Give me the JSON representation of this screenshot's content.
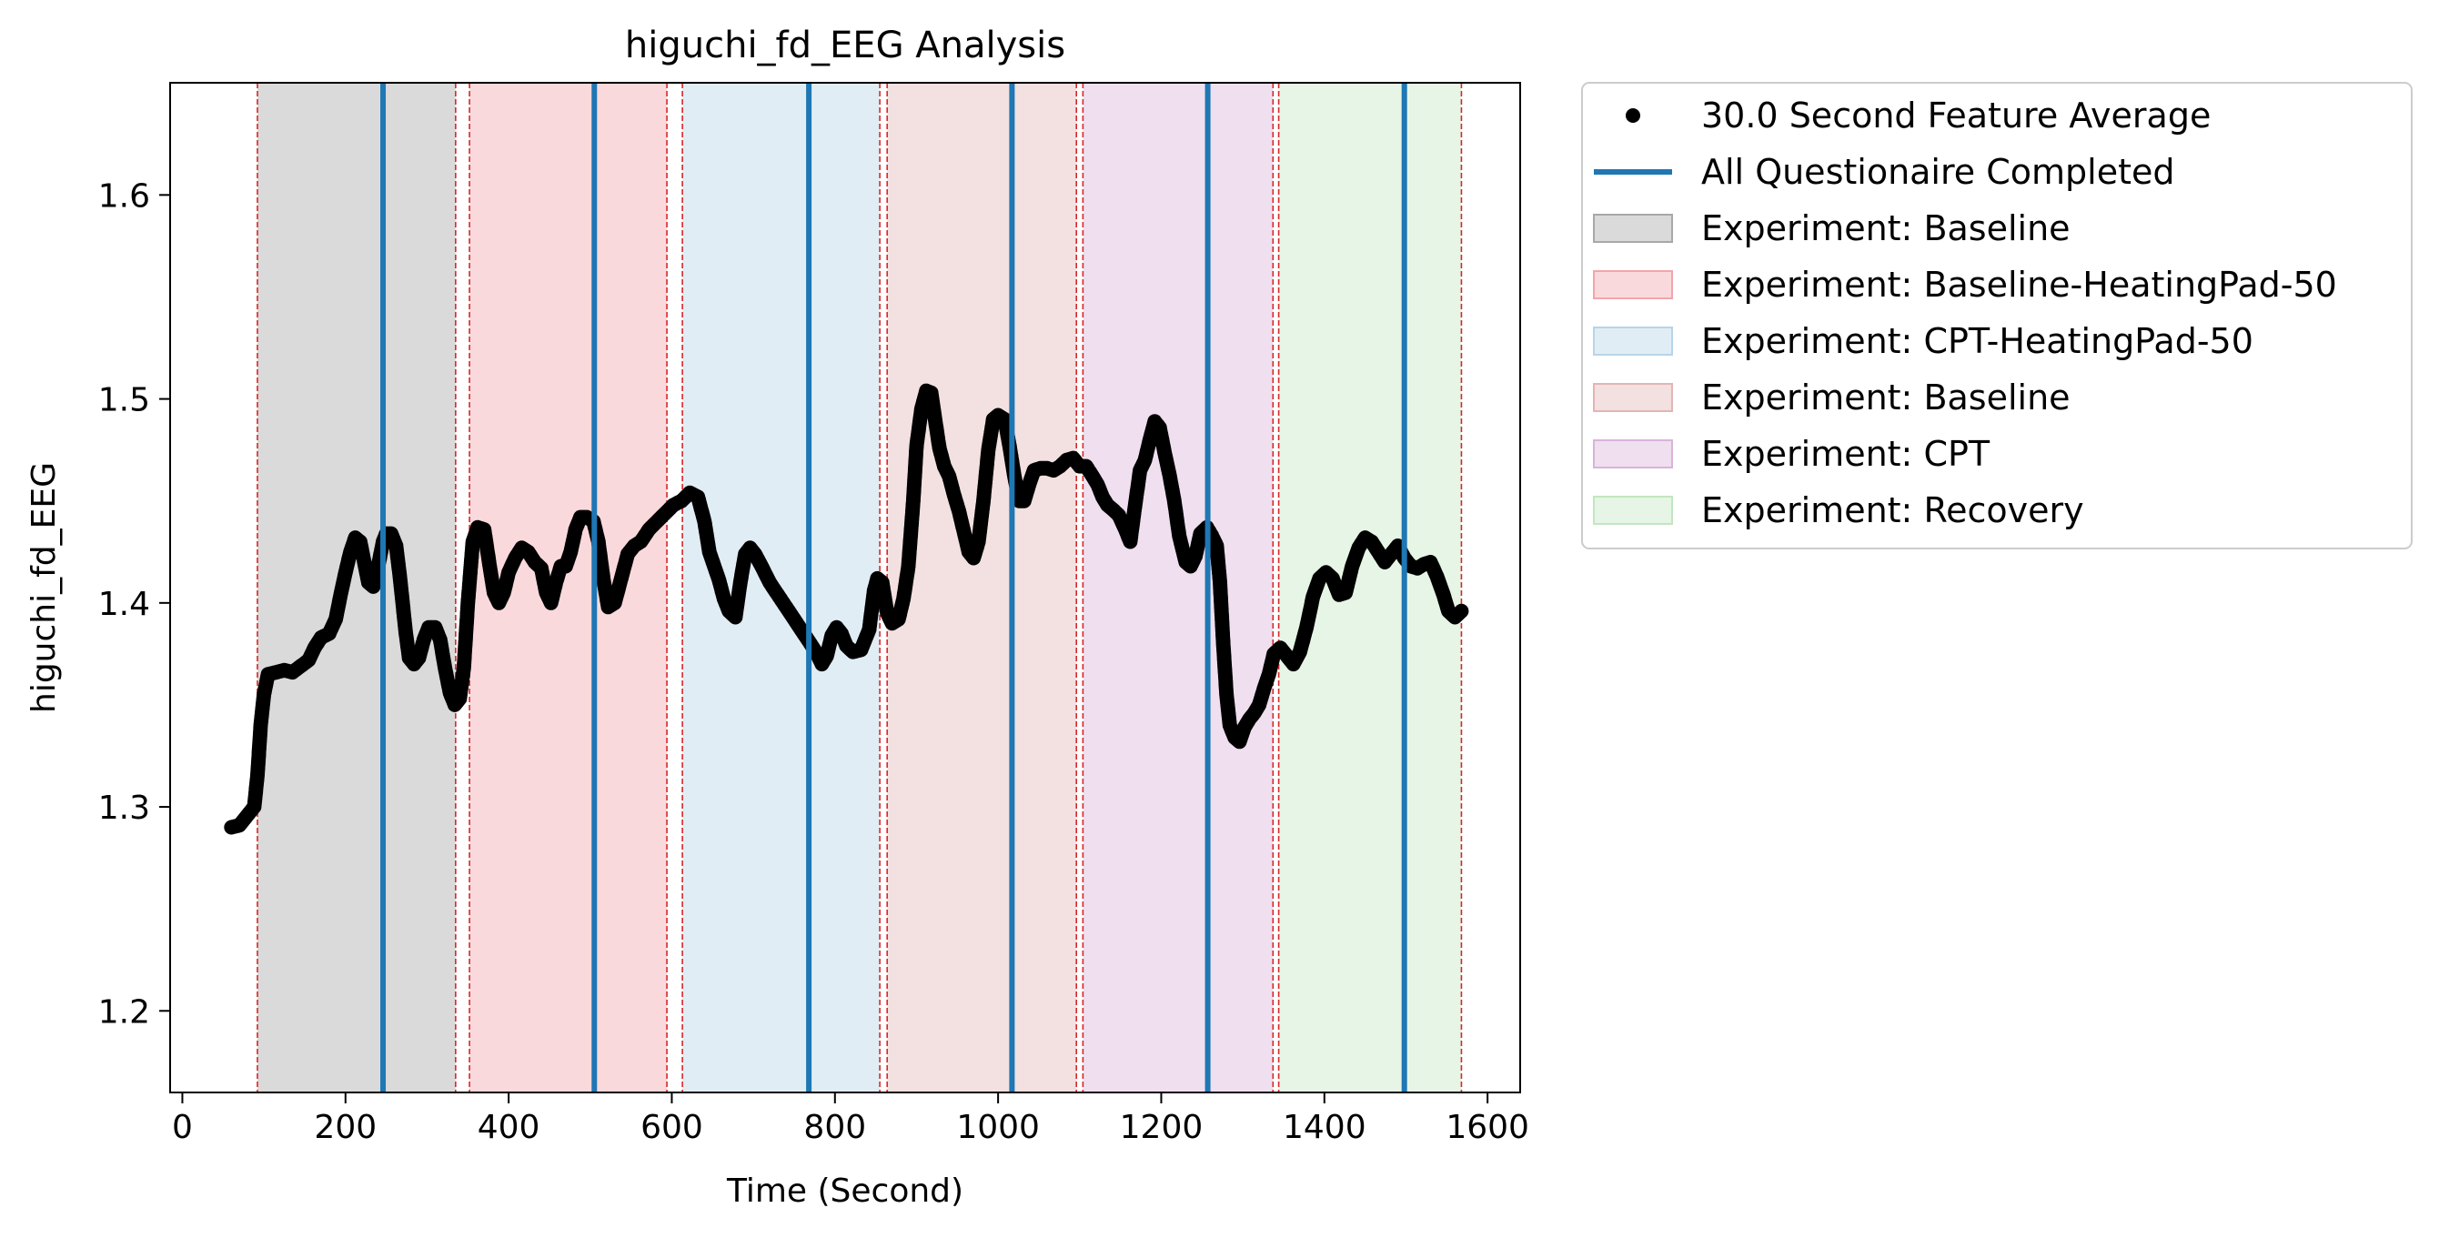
{
  "chart_data": {
    "type": "scatter",
    "title": "higuchi_fd_EEG Analysis",
    "xlabel": "Time (Second)",
    "ylabel": "higuchi_fd_EEG",
    "xlim": [
      -15,
      1640
    ],
    "ylim": [
      1.16,
      1.655
    ],
    "xticks": [
      0,
      200,
      400,
      600,
      800,
      1000,
      1200,
      1400,
      1600
    ],
    "yticks": [
      1.2,
      1.3,
      1.4,
      1.5,
      1.6
    ],
    "grid": false,
    "legend_position": "outside-right-top",
    "series": [
      {
        "name": "30.0 Second Feature Average",
        "kind": "scatter",
        "color": "#000000",
        "points": [
          [
            60,
            1.29
          ],
          [
            70,
            1.291
          ],
          [
            80,
            1.296
          ],
          [
            88,
            1.3
          ],
          [
            92,
            1.315
          ],
          [
            96,
            1.34
          ],
          [
            100,
            1.355
          ],
          [
            105,
            1.365
          ],
          [
            115,
            1.366
          ],
          [
            125,
            1.367
          ],
          [
            135,
            1.366
          ],
          [
            145,
            1.369
          ],
          [
            155,
            1.372
          ],
          [
            162,
            1.378
          ],
          [
            170,
            1.383
          ],
          [
            180,
            1.385
          ],
          [
            188,
            1.392
          ],
          [
            194,
            1.404
          ],
          [
            200,
            1.415
          ],
          [
            206,
            1.425
          ],
          [
            212,
            1.432
          ],
          [
            218,
            1.43
          ],
          [
            222,
            1.422
          ],
          [
            228,
            1.41
          ],
          [
            234,
            1.408
          ],
          [
            240,
            1.418
          ],
          [
            246,
            1.43
          ],
          [
            250,
            1.434
          ],
          [
            256,
            1.434
          ],
          [
            262,
            1.428
          ],
          [
            266,
            1.415
          ],
          [
            270,
            1.4
          ],
          [
            274,
            1.385
          ],
          [
            278,
            1.373
          ],
          [
            284,
            1.37
          ],
          [
            290,
            1.373
          ],
          [
            296,
            1.382
          ],
          [
            302,
            1.388
          ],
          [
            310,
            1.388
          ],
          [
            316,
            1.382
          ],
          [
            322,
            1.368
          ],
          [
            328,
            1.356
          ],
          [
            334,
            1.35
          ],
          [
            340,
            1.353
          ],
          [
            345,
            1.368
          ],
          [
            350,
            1.4
          ],
          [
            356,
            1.43
          ],
          [
            362,
            1.437
          ],
          [
            370,
            1.436
          ],
          [
            376,
            1.42
          ],
          [
            382,
            1.405
          ],
          [
            388,
            1.4
          ],
          [
            394,
            1.405
          ],
          [
            400,
            1.415
          ],
          [
            408,
            1.422
          ],
          [
            416,
            1.427
          ],
          [
            424,
            1.425
          ],
          [
            432,
            1.42
          ],
          [
            440,
            1.417
          ],
          [
            446,
            1.405
          ],
          [
            452,
            1.4
          ],
          [
            458,
            1.41
          ],
          [
            464,
            1.418
          ],
          [
            470,
            1.418
          ],
          [
            476,
            1.425
          ],
          [
            482,
            1.436
          ],
          [
            488,
            1.442
          ],
          [
            496,
            1.442
          ],
          [
            504,
            1.44
          ],
          [
            510,
            1.43
          ],
          [
            516,
            1.412
          ],
          [
            522,
            1.398
          ],
          [
            530,
            1.4
          ],
          [
            538,
            1.412
          ],
          [
            546,
            1.424
          ],
          [
            554,
            1.428
          ],
          [
            562,
            1.43
          ],
          [
            572,
            1.436
          ],
          [
            582,
            1.44
          ],
          [
            592,
            1.444
          ],
          [
            602,
            1.448
          ],
          [
            612,
            1.45
          ],
          [
            622,
            1.454
          ],
          [
            632,
            1.452
          ],
          [
            640,
            1.44
          ],
          [
            646,
            1.425
          ],
          [
            652,
            1.418
          ],
          [
            658,
            1.411
          ],
          [
            664,
            1.402
          ],
          [
            670,
            1.396
          ],
          [
            678,
            1.393
          ],
          [
            684,
            1.41
          ],
          [
            690,
            1.424
          ],
          [
            696,
            1.427
          ],
          [
            702,
            1.424
          ],
          [
            710,
            1.418
          ],
          [
            720,
            1.41
          ],
          [
            730,
            1.404
          ],
          [
            740,
            1.398
          ],
          [
            750,
            1.392
          ],
          [
            760,
            1.386
          ],
          [
            770,
            1.38
          ],
          [
            778,
            1.375
          ],
          [
            784,
            1.37
          ],
          [
            790,
            1.374
          ],
          [
            796,
            1.384
          ],
          [
            802,
            1.388
          ],
          [
            808,
            1.385
          ],
          [
            814,
            1.379
          ],
          [
            822,
            1.376
          ],
          [
            832,
            1.377
          ],
          [
            842,
            1.387
          ],
          [
            848,
            1.406
          ],
          [
            852,
            1.412
          ],
          [
            858,
            1.41
          ],
          [
            864,
            1.395
          ],
          [
            870,
            1.39
          ],
          [
            878,
            1.392
          ],
          [
            884,
            1.402
          ],
          [
            890,
            1.418
          ],
          [
            896,
            1.45
          ],
          [
            900,
            1.477
          ],
          [
            906,
            1.495
          ],
          [
            912,
            1.504
          ],
          [
            918,
            1.503
          ],
          [
            922,
            1.492
          ],
          [
            928,
            1.476
          ],
          [
            934,
            1.467
          ],
          [
            940,
            1.462
          ],
          [
            946,
            1.453
          ],
          [
            952,
            1.445
          ],
          [
            958,
            1.435
          ],
          [
            964,
            1.425
          ],
          [
            970,
            1.422
          ],
          [
            976,
            1.43
          ],
          [
            982,
            1.45
          ],
          [
            988,
            1.475
          ],
          [
            994,
            1.49
          ],
          [
            1000,
            1.492
          ],
          [
            1008,
            1.49
          ],
          [
            1014,
            1.477
          ],
          [
            1020,
            1.462
          ],
          [
            1026,
            1.45
          ],
          [
            1032,
            1.45
          ],
          [
            1038,
            1.458
          ],
          [
            1044,
            1.465
          ],
          [
            1052,
            1.466
          ],
          [
            1060,
            1.466
          ],
          [
            1068,
            1.465
          ],
          [
            1076,
            1.467
          ],
          [
            1084,
            1.47
          ],
          [
            1092,
            1.471
          ],
          [
            1100,
            1.467
          ],
          [
            1108,
            1.467
          ],
          [
            1116,
            1.462
          ],
          [
            1122,
            1.458
          ],
          [
            1128,
            1.452
          ],
          [
            1134,
            1.448
          ],
          [
            1140,
            1.446
          ],
          [
            1148,
            1.443
          ],
          [
            1156,
            1.436
          ],
          [
            1162,
            1.43
          ],
          [
            1168,
            1.448
          ],
          [
            1174,
            1.465
          ],
          [
            1180,
            1.47
          ],
          [
            1186,
            1.48
          ],
          [
            1192,
            1.489
          ],
          [
            1198,
            1.486
          ],
          [
            1204,
            1.474
          ],
          [
            1210,
            1.463
          ],
          [
            1216,
            1.45
          ],
          [
            1222,
            1.433
          ],
          [
            1230,
            1.42
          ],
          [
            1236,
            1.418
          ],
          [
            1242,
            1.423
          ],
          [
            1248,
            1.434
          ],
          [
            1256,
            1.437
          ],
          [
            1262,
            1.433
          ],
          [
            1268,
            1.428
          ],
          [
            1272,
            1.41
          ],
          [
            1276,
            1.38
          ],
          [
            1280,
            1.355
          ],
          [
            1284,
            1.34
          ],
          [
            1290,
            1.334
          ],
          [
            1296,
            1.332
          ],
          [
            1302,
            1.339
          ],
          [
            1308,
            1.343
          ],
          [
            1314,
            1.346
          ],
          [
            1320,
            1.35
          ],
          [
            1326,
            1.358
          ],
          [
            1332,
            1.365
          ],
          [
            1338,
            1.375
          ],
          [
            1346,
            1.378
          ],
          [
            1354,
            1.374
          ],
          [
            1362,
            1.37
          ],
          [
            1370,
            1.376
          ],
          [
            1378,
            1.388
          ],
          [
            1386,
            1.403
          ],
          [
            1394,
            1.412
          ],
          [
            1402,
            1.415
          ],
          [
            1410,
            1.412
          ],
          [
            1418,
            1.404
          ],
          [
            1426,
            1.405
          ],
          [
            1434,
            1.418
          ],
          [
            1442,
            1.427
          ],
          [
            1450,
            1.432
          ],
          [
            1458,
            1.43
          ],
          [
            1466,
            1.425
          ],
          [
            1474,
            1.42
          ],
          [
            1482,
            1.424
          ],
          [
            1490,
            1.428
          ],
          [
            1498,
            1.422
          ],
          [
            1506,
            1.418
          ],
          [
            1514,
            1.417
          ],
          [
            1522,
            1.419
          ],
          [
            1530,
            1.42
          ],
          [
            1538,
            1.413
          ],
          [
            1546,
            1.404
          ],
          [
            1552,
            1.396
          ],
          [
            1560,
            1.393
          ],
          [
            1568,
            1.396
          ]
        ]
      },
      {
        "name": "All Questionaire Completed",
        "kind": "vline",
        "color": "#1f77b4",
        "x": [
          246,
          505,
          768,
          1017,
          1257,
          1498
        ]
      }
    ],
    "regions": [
      {
        "name": "Experiment: Baseline",
        "x0": 92,
        "x1": 335,
        "color": "#a8a8a8"
      },
      {
        "name": "Experiment: Baseline-HeatingPad-50",
        "x0": 352,
        "x1": 594,
        "color": "#f2a5ac"
      },
      {
        "name": "Experiment: CPT-HeatingPad-50",
        "x0": 613,
        "x1": 855,
        "color": "#b8d4e8"
      },
      {
        "name": "Experiment: Baseline",
        "x0": 864,
        "x1": 1096,
        "color": "#e3b5b5"
      },
      {
        "name": "Experiment: CPT",
        "x0": 1104,
        "x1": 1337,
        "color": "#d9b3da"
      },
      {
        "name": "Experiment: Recovery",
        "x0": 1344,
        "x1": 1568,
        "color": "#c3e6c0"
      }
    ],
    "boundary_lines": {
      "color": "#d62728",
      "x": [
        92,
        335,
        352,
        594,
        613,
        855,
        864,
        1096,
        1104,
        1337,
        1344,
        1568
      ]
    }
  }
}
